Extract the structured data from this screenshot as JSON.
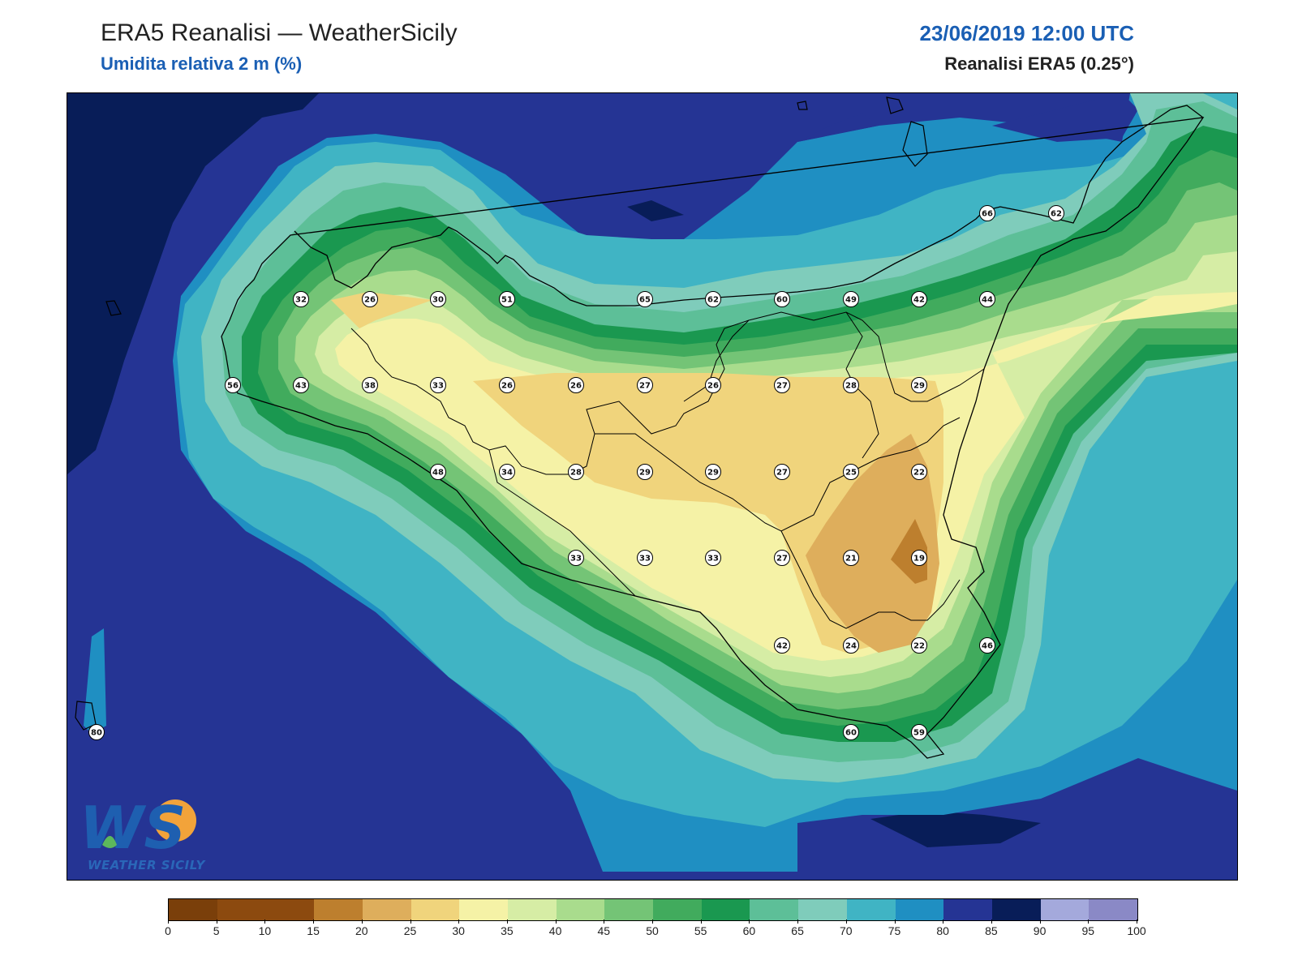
{
  "header": {
    "title": "ERA5 Reanalisi — WeatherSicily",
    "subtitle": "Umidita relativa 2 m (%)",
    "datetime": "23/06/2019 12:00 UTC",
    "source": "Reanalisi ERA5 (0.25°)"
  },
  "logo": {
    "letters": "WS",
    "text": "WEATHER SICILY"
  },
  "colorbar": {
    "ticks": [
      "0",
      "5",
      "10",
      "15",
      "20",
      "25",
      "30",
      "35",
      "40",
      "45",
      "50",
      "55",
      "60",
      "65",
      "70",
      "75",
      "80",
      "85",
      "90",
      "95",
      "100"
    ],
    "colors": [
      "#7a3f0a",
      "#8c4a0f",
      "#8c4a0f",
      "#bd7f2e",
      "#deae5c",
      "#f0d47c",
      "#f5f2a6",
      "#d6eda5",
      "#a9dc8d",
      "#74c476",
      "#41ab5d",
      "#1a9850",
      "#5dbf98",
      "#7fccbb",
      "#40b4c4",
      "#1f8fc2",
      "#253494",
      "#081d58",
      "#a4a9dc",
      "#8a89c6"
    ],
    "colors_legend": "bins 0-5 ... 95-100"
  },
  "stations": [
    {
      "value": "32"
    },
    {
      "value": "26"
    },
    {
      "value": "30"
    },
    {
      "value": "51"
    },
    {
      "value": "65"
    },
    {
      "value": "62"
    },
    {
      "value": "60"
    },
    {
      "value": "49"
    },
    {
      "value": "42"
    },
    {
      "value": "44"
    },
    {
      "value": "66"
    },
    {
      "value": "62"
    },
    {
      "value": "56"
    },
    {
      "value": "43"
    },
    {
      "value": "38"
    },
    {
      "value": "33"
    },
    {
      "value": "26"
    },
    {
      "value": "26"
    },
    {
      "value": "27"
    },
    {
      "value": "26"
    },
    {
      "value": "27"
    },
    {
      "value": "28"
    },
    {
      "value": "29"
    },
    {
      "value": "48"
    },
    {
      "value": "34"
    },
    {
      "value": "28"
    },
    {
      "value": "29"
    },
    {
      "value": "29"
    },
    {
      "value": "27"
    },
    {
      "value": "25"
    },
    {
      "value": "22"
    },
    {
      "value": "33"
    },
    {
      "value": "33"
    },
    {
      "value": "33"
    },
    {
      "value": "27"
    },
    {
      "value": "21"
    },
    {
      "value": "19"
    },
    {
      "value": "42"
    },
    {
      "value": "24"
    },
    {
      "value": "22"
    },
    {
      "value": "46"
    },
    {
      "value": "60"
    },
    {
      "value": "59"
    },
    {
      "value": "80"
    }
  ]
}
